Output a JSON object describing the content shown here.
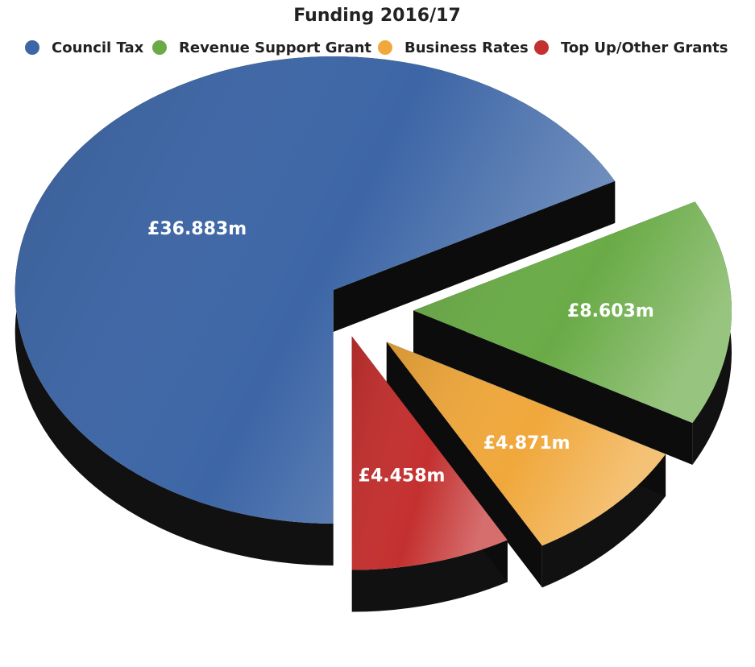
{
  "chart_data": {
    "type": "pie",
    "title": "Funding 2016/17",
    "categories": [
      "Council Tax",
      "Revenue Support Grant",
      "Business Rates",
      "Top Up/Other Grants"
    ],
    "values": [
      36.883,
      8.603,
      4.871,
      4.458
    ],
    "value_labels": [
      "£36.883m",
      "£8.603m",
      "£4.871m",
      "£4.458m"
    ],
    "colors": [
      "#3d66a6",
      "#6aab47",
      "#f0a83c",
      "#c3302f"
    ],
    "legend": "top"
  }
}
